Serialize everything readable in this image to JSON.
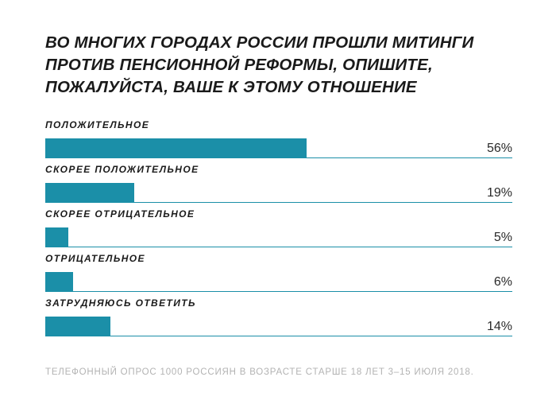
{
  "chart_data": {
    "type": "bar",
    "orientation": "horizontal",
    "title": "ВО МНОГИХ ГОРОДАХ РОССИИ ПРОШЛИ МИТИНГИ ПРОТИВ ПЕНСИОННОЙ РЕФОРМЫ, ОПИШИТЕ, ПОЖАЛУЙСТА, ВАШЕ К ЭТОМУ ОТНОШЕНИЕ",
    "categories": [
      "ПОЛОЖИТЕЛЬНОЕ",
      "СКОРЕЕ ПОЛОЖИТЕЛЬНОЕ",
      "СКОРЕЕ ОТРИЦАТЕЛЬНОЕ",
      "ОТРИЦАТЕЛЬНОЕ",
      "ЗАТРУДНЯЮСЬ ОТВЕТИТЬ"
    ],
    "values": [
      56,
      19,
      5,
      6,
      14
    ],
    "value_labels": [
      "56%",
      "19%",
      "5%",
      "6%",
      "14%"
    ],
    "unit": "%",
    "xlim": [
      0,
      100
    ],
    "bar_color": "#1b8fa8",
    "grid": false,
    "legend": "none"
  },
  "footnote": "ТЕЛЕФОННЫЙ ОПРОС 1000 РОССИЯН В ВОЗРАСТЕ СТАРШЕ 18 ЛЕТ 3–15 ИЮЛЯ 2018."
}
